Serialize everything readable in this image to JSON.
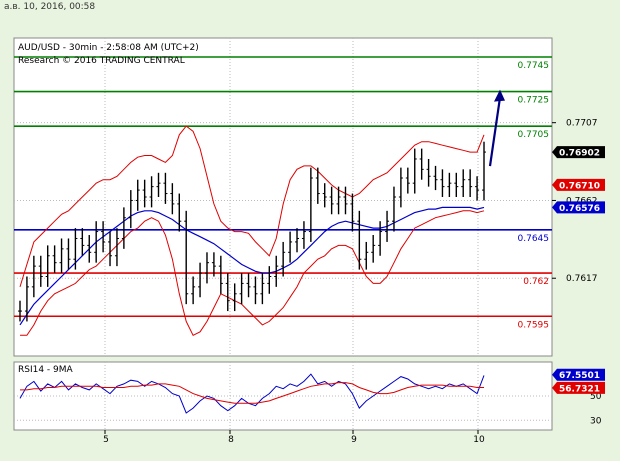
{
  "timestamp": "а.в. 10, 2016, 00:58",
  "chart_data": [
    {
      "type": "line",
      "title": "AUD/USD - 30min - 2:58:08 AM (UTC+2)",
      "subtitle": "Research © 2016 TRADING CENTRAL",
      "ylim": [
        0.7572,
        0.7756
      ],
      "x_ticks": [
        "5",
        "8",
        "9",
        "10"
      ],
      "y_ticks": [
        {
          "value": 0.7707,
          "label": "0.7707"
        },
        {
          "value": 0.7662,
          "label": "0.7662"
        },
        {
          "value": 0.7617,
          "label": "0.7617"
        }
      ],
      "levels": [
        {
          "value": 0.7745,
          "label": "0.7745",
          "color": "#008000"
        },
        {
          "value": 0.7725,
          "label": "0.7725",
          "color": "#008000"
        },
        {
          "value": 0.7705,
          "label": "0.7705",
          "color": "#008000"
        },
        {
          "value": 0.7645,
          "label": "0.7645",
          "color": "#0000cc"
        },
        {
          "value": 0.762,
          "label": "0.762",
          "color": "#e00000"
        },
        {
          "value": 0.7595,
          "label": "0.7595",
          "color": "#e00000"
        }
      ],
      "badges": [
        {
          "value": 0.769,
          "label": "0.76902",
          "bg": "#000000",
          "fg": "#ffffff"
        },
        {
          "value": 0.7671,
          "label": "0.76710",
          "bg": "#e00000",
          "fg": "#ffffff"
        },
        {
          "value": 0.7658,
          "label": "0.76576",
          "bg": "#0000cc",
          "fg": "#ffffff"
        }
      ],
      "price": [
        0.7598,
        0.7612,
        0.7624,
        0.7618,
        0.763,
        0.7626,
        0.7634,
        0.7628,
        0.764,
        0.7636,
        0.7632,
        0.7644,
        0.7638,
        0.763,
        0.764,
        0.7652,
        0.7662,
        0.7668,
        0.7664,
        0.767,
        0.7672,
        0.7666,
        0.766,
        0.765,
        0.7608,
        0.7612,
        0.762,
        0.7626,
        0.7624,
        0.7614,
        0.7604,
        0.7608,
        0.7614,
        0.7612,
        0.7608,
        0.7614,
        0.7618,
        0.7624,
        0.7632,
        0.7638,
        0.764,
        0.7644,
        0.7675,
        0.7666,
        0.7664,
        0.766,
        0.7664,
        0.766,
        0.765,
        0.7628,
        0.7632,
        0.7636,
        0.7644,
        0.765,
        0.7664,
        0.7675,
        0.7672,
        0.7686,
        0.768,
        0.7676,
        0.7674,
        0.767,
        0.7672,
        0.767,
        0.7674,
        0.767,
        0.7668,
        0.769
      ],
      "ma_price": [
        0.759,
        0.7596,
        0.7602,
        0.7606,
        0.761,
        0.7614,
        0.7618,
        0.7622,
        0.7626,
        0.763,
        0.7634,
        0.7638,
        0.7641,
        0.7644,
        0.7647,
        0.765,
        0.7653,
        0.7655,
        0.7656,
        0.7656,
        0.7655,
        0.7653,
        0.7651,
        0.7648,
        0.7645,
        0.7643,
        0.7641,
        0.7639,
        0.7637,
        0.7634,
        0.7631,
        0.7628,
        0.7625,
        0.7623,
        0.7621,
        0.762,
        0.762,
        0.7621,
        0.7623,
        0.7625,
        0.7628,
        0.7632,
        0.7636,
        0.764,
        0.7644,
        0.7647,
        0.7649,
        0.765,
        0.7649,
        0.7648,
        0.7647,
        0.7646,
        0.7646,
        0.7647,
        0.7649,
        0.7651,
        0.7653,
        0.7655,
        0.7656,
        0.7657,
        0.7657,
        0.7658,
        0.7658,
        0.7658,
        0.7658,
        0.7658,
        0.7657,
        0.7658
      ],
      "bb_upper": [
        0.7612,
        0.7625,
        0.7638,
        0.7642,
        0.7646,
        0.765,
        0.7654,
        0.7656,
        0.766,
        0.7664,
        0.7668,
        0.7672,
        0.7674,
        0.7674,
        0.7676,
        0.768,
        0.7684,
        0.7687,
        0.7688,
        0.7688,
        0.7686,
        0.7684,
        0.7688,
        0.77,
        0.7705,
        0.7702,
        0.7692,
        0.7676,
        0.766,
        0.765,
        0.7646,
        0.7644,
        0.7644,
        0.7643,
        0.7638,
        0.7634,
        0.763,
        0.764,
        0.766,
        0.7674,
        0.768,
        0.7682,
        0.7682,
        0.7679,
        0.7675,
        0.7671,
        0.7668,
        0.7666,
        0.7664,
        0.7666,
        0.767,
        0.7674,
        0.7676,
        0.7678,
        0.7682,
        0.7686,
        0.769,
        0.7694,
        0.7696,
        0.7696,
        0.7695,
        0.7694,
        0.7693,
        0.7692,
        0.7691,
        0.769,
        0.769,
        0.77
      ],
      "bb_lower": [
        0.7584,
        0.7584,
        0.759,
        0.7598,
        0.7604,
        0.7608,
        0.761,
        0.7612,
        0.7614,
        0.7618,
        0.7622,
        0.7624,
        0.7628,
        0.7632,
        0.7636,
        0.764,
        0.7644,
        0.7646,
        0.765,
        0.7652,
        0.765,
        0.7642,
        0.7628,
        0.7608,
        0.7592,
        0.7584,
        0.7586,
        0.7592,
        0.76,
        0.7608,
        0.7606,
        0.7604,
        0.7602,
        0.7598,
        0.7594,
        0.759,
        0.7592,
        0.7596,
        0.76,
        0.7606,
        0.7612,
        0.762,
        0.7624,
        0.7628,
        0.763,
        0.7634,
        0.7636,
        0.7636,
        0.7634,
        0.7626,
        0.7618,
        0.7614,
        0.7614,
        0.7618,
        0.7626,
        0.7634,
        0.764,
        0.7646,
        0.7648,
        0.765,
        0.7652,
        0.7653,
        0.7654,
        0.7655,
        0.7656,
        0.7656,
        0.7655,
        0.7656
      ],
      "projection": {
        "from": 0.769,
        "to": 0.7725
      }
    },
    {
      "type": "line",
      "title": "RSI14 - 9MA",
      "ylim": [
        22,
        78
      ],
      "y_ticks": [
        {
          "value": 50,
          "label": "50"
        },
        {
          "value": 30,
          "label": "30"
        }
      ],
      "badges": [
        {
          "value": 67.5501,
          "label": "67.5501",
          "bg": "#0000cc",
          "fg": "#ffffff"
        },
        {
          "value": 56.7321,
          "label": "56.7321",
          "bg": "#e00000",
          "fg": "#ffffff"
        }
      ],
      "series": [
        {
          "name": "RSI14",
          "color": "#0000cc",
          "values": [
            48,
            58,
            62,
            54,
            60,
            57,
            62,
            55,
            60,
            57,
            55,
            60,
            56,
            52,
            58,
            60,
            63,
            62,
            58,
            62,
            60,
            57,
            52,
            50,
            36,
            40,
            46,
            50,
            48,
            42,
            38,
            42,
            48,
            44,
            42,
            48,
            52,
            58,
            56,
            60,
            58,
            62,
            68,
            60,
            62,
            58,
            62,
            60,
            52,
            40,
            46,
            50,
            54,
            58,
            62,
            66,
            64,
            60,
            58,
            56,
            58,
            56,
            60,
            58,
            60,
            56,
            52,
            67
          ]
        },
        {
          "name": "9MA",
          "color": "#e00000",
          "values": [
            55,
            55,
            56,
            56,
            57,
            57,
            58,
            58,
            58,
            58,
            58,
            58,
            57,
            57,
            57,
            57,
            58,
            58,
            59,
            59,
            60,
            60,
            59,
            58,
            55,
            52,
            50,
            48,
            47,
            46,
            45,
            44,
            44,
            44,
            44,
            45,
            46,
            48,
            50,
            52,
            54,
            56,
            58,
            59,
            60,
            60,
            61,
            61,
            60,
            57,
            55,
            53,
            52,
            52,
            53,
            55,
            57,
            58,
            59,
            59,
            59,
            59,
            58,
            58,
            58,
            58,
            57,
            57
          ]
        }
      ]
    }
  ]
}
